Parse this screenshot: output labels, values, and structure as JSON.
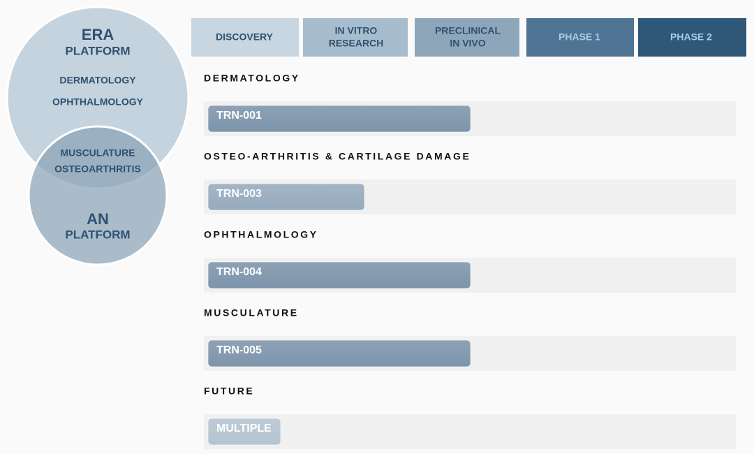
{
  "venn": {
    "top": {
      "title": "ERA",
      "subtitle": "PLATFORM",
      "items": [
        "DERMATOLOGY",
        "OPHTHALMOLOGY"
      ]
    },
    "overlap": [
      "MUSCULATURE",
      "OSTEOARTHRITIS"
    ],
    "bottom": {
      "title": "AN",
      "subtitle": "PLATFORM"
    }
  },
  "pipeline": {
    "stages": [
      [
        "DISCOVERY"
      ],
      [
        "IN VITRO",
        "RESEARCH"
      ],
      [
        "PRECLINICAL",
        "IN VIVO"
      ],
      [
        "PHASE 1"
      ],
      [
        "PHASE 2"
      ]
    ],
    "stage_colors": [
      "#c8d6e1",
      "#a7bccc",
      "#8ea6ba",
      "#4f7392",
      "#2e5778"
    ],
    "stage_text_colors": [
      "#2f5272",
      "#2f5272",
      "#2f5272",
      "#a8cbe6",
      "#a8cbe6"
    ],
    "programs": [
      {
        "area": "DERMATOLOGY",
        "name": "TRN-001",
        "progress": 2.5,
        "color": "#7d94ab"
      },
      {
        "area": "OSTEO-ARTHRITIS & CARTILAGE DAMAGE",
        "name": "TRN-003",
        "progress": 1.55,
        "color": "#96abbe"
      },
      {
        "area": "OPHTHALMOLOGY",
        "name": "TRN-004",
        "progress": 2.5,
        "color": "#7d94ab"
      },
      {
        "area": "MUSCULATURE",
        "name": "TRN-005",
        "progress": 2.5,
        "color": "#7d94ab"
      },
      {
        "area": "FUTURE",
        "name": "MULTIPLE",
        "progress": 0.8,
        "color": "#b5c4d1"
      }
    ]
  }
}
